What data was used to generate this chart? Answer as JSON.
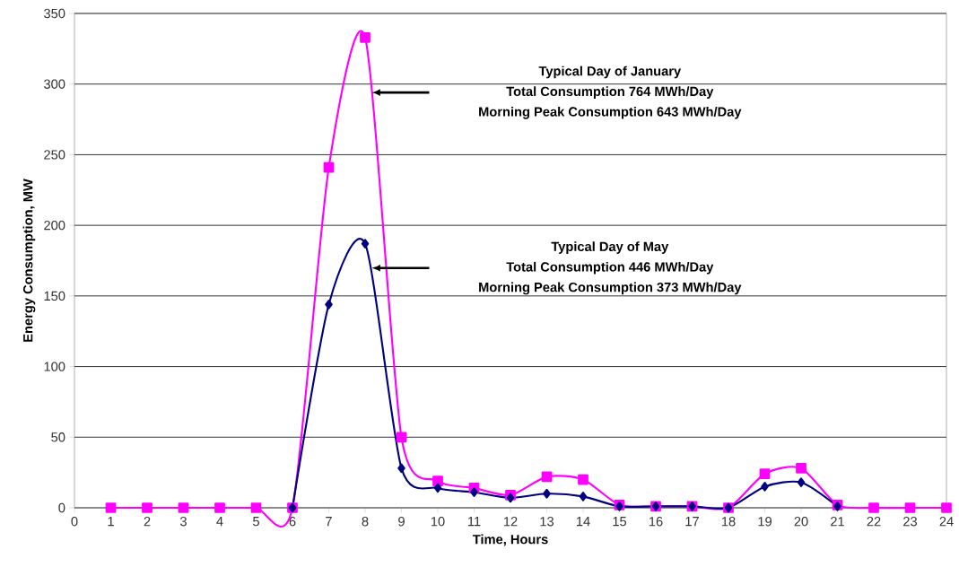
{
  "chart_data": {
    "type": "line",
    "xlabel": "Time, Hours",
    "ylabel": "Energy Consumption, MW",
    "x": [
      1,
      2,
      3,
      4,
      5,
      6,
      7,
      8,
      9,
      10,
      11,
      12,
      13,
      14,
      15,
      16,
      17,
      18,
      19,
      20,
      21,
      22,
      23,
      24
    ],
    "series": [
      {
        "name": null,
        "color": "#000080",
        "marker": "diamond",
        "values": [
          null,
          null,
          null,
          null,
          null,
          0,
          144,
          187,
          28,
          14,
          11,
          7,
          10,
          8,
          1,
          1,
          1,
          0,
          15,
          18,
          1,
          null,
          null,
          null
        ]
      },
      {
        "name": null,
        "color": "#ff00ff",
        "marker": "square",
        "values": [
          0,
          0,
          0,
          0,
          0,
          0,
          241,
          333,
          50,
          19,
          14,
          9,
          22,
          20,
          2,
          1,
          1,
          0,
          24,
          28,
          2,
          0,
          0,
          0
        ]
      }
    ],
    "xlim": [
      0,
      24
    ],
    "xticks": [
      0,
      1,
      2,
      3,
      4,
      5,
      6,
      7,
      8,
      9,
      10,
      11,
      12,
      13,
      14,
      15,
      16,
      17,
      18,
      19,
      20,
      21,
      22,
      23,
      24
    ],
    "ylim": [
      0,
      350
    ],
    "yticks": [
      0,
      50,
      100,
      150,
      200,
      250,
      300,
      350
    ],
    "grid": "y",
    "line_style": "solid",
    "annotations": [
      "Typical Day of January",
      "Total Consumption  764 MWh/Day",
      "Morning Peak Consumption 643 MWh/Day",
      "Typical Day of May",
      "Total Consumption  446 MWh/Day",
      "Morning Peak Consumption 373 MWh/Day"
    ]
  }
}
